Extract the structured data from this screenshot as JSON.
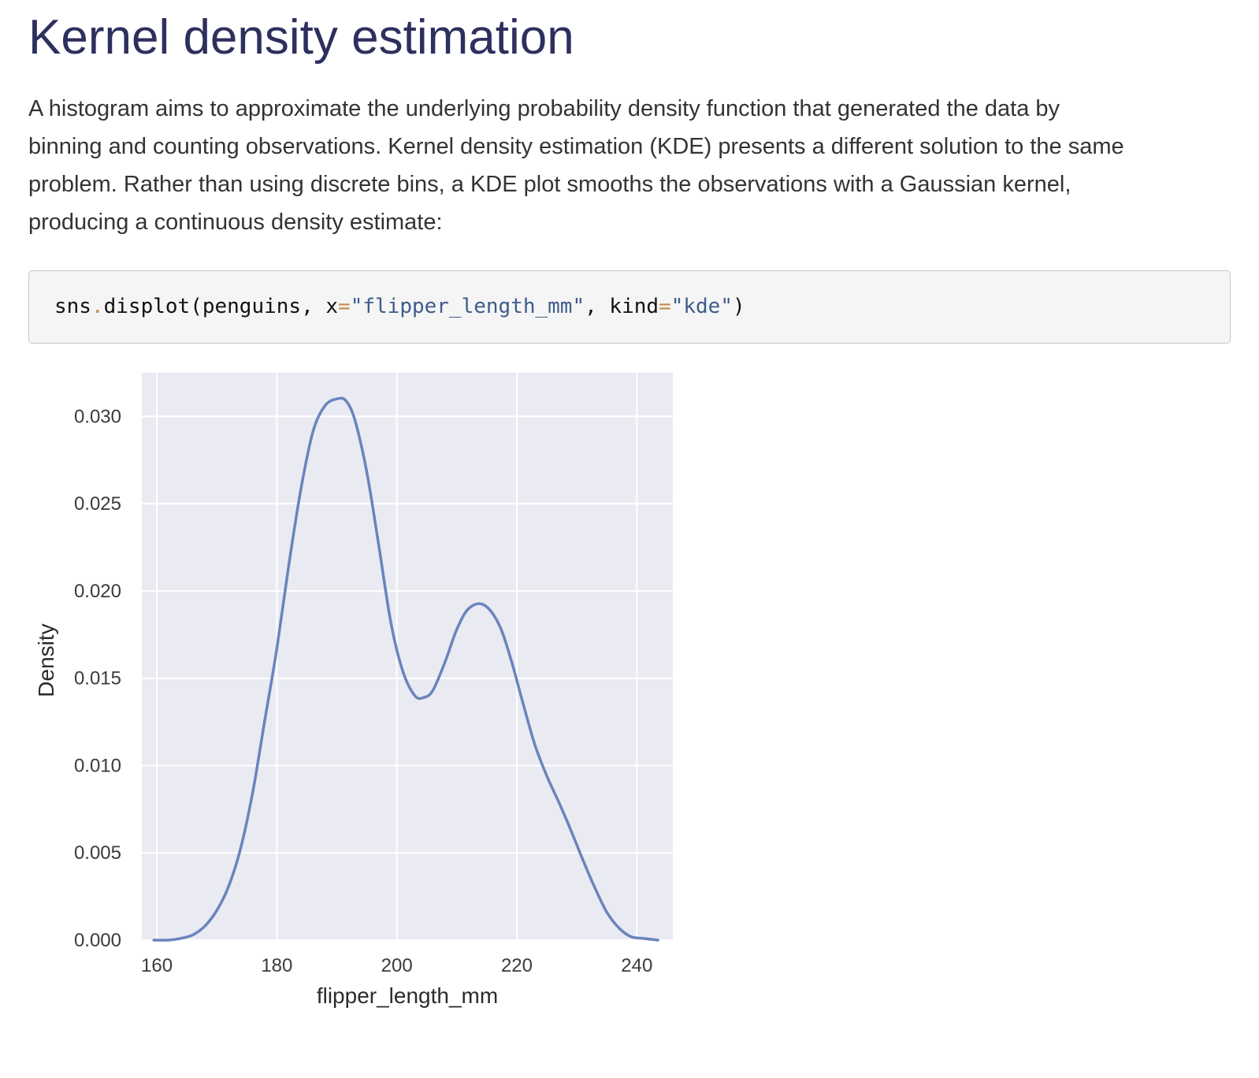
{
  "heading": "Kernel density estimation",
  "paragraph": {
    "lines": [
      "A histogram aims to approximate the underlying probability density function that generated the data by",
      "binning and counting observations. Kernel density estimation (KDE) presents a different solution to the same",
      "problem. Rather than using discrete bins, a KDE plot smooths the observations with a Gaussian kernel,",
      "producing a continuous density estimate:"
    ]
  },
  "code": {
    "tokens": [
      {
        "text": "sns",
        "kind": "plain"
      },
      {
        "text": ".",
        "kind": "op"
      },
      {
        "text": "displot(penguins, x",
        "kind": "plain"
      },
      {
        "text": "=",
        "kind": "op"
      },
      {
        "text": "\"flipper_length_mm\"",
        "kind": "str"
      },
      {
        "text": ", kind",
        "kind": "plain"
      },
      {
        "text": "=",
        "kind": "op"
      },
      {
        "text": "\"kde\"",
        "kind": "str"
      },
      {
        "text": ")",
        "kind": "plain"
      }
    ]
  },
  "colors": {
    "heading": "#2d2f5e",
    "plot_background": "#eaeaf2",
    "grid": "#ffffff",
    "line": "#6a84bc",
    "code_operator": "#c08a4e",
    "code_string": "#3e5c8c"
  },
  "chart_data": {
    "type": "line",
    "title": "",
    "xlabel": "flipper_length_mm",
    "ylabel": "Density",
    "xlim": [
      157.5,
      246
    ],
    "ylim": [
      0,
      0.0325
    ],
    "xticks": [
      "160",
      "180",
      "200",
      "220",
      "240"
    ],
    "yticks": [
      "0.000",
      "0.005",
      "0.010",
      "0.015",
      "0.020",
      "0.025",
      "0.030"
    ],
    "grid": true,
    "series": [
      {
        "x": [
          159.5,
          162,
          164,
          166,
          168,
          170,
          172,
          174,
          176,
          178,
          180,
          182,
          184,
          186,
          188,
          190,
          191.5,
          193,
          195,
          197,
          199,
          201,
          203,
          204.5,
          206,
          208,
          210,
          212,
          214.5,
          217,
          219,
          221,
          223,
          225,
          227,
          229,
          231,
          233,
          235,
          237,
          239,
          241,
          243.5
        ],
        "y": [
          0.0,
          0.0,
          0.0001,
          0.0003,
          0.0008,
          0.0017,
          0.0031,
          0.0053,
          0.0085,
          0.0126,
          0.0167,
          0.0215,
          0.0258,
          0.0291,
          0.0306,
          0.031,
          0.0309,
          0.0298,
          0.0268,
          0.0226,
          0.0182,
          0.0154,
          0.014,
          0.0139,
          0.0143,
          0.0159,
          0.0178,
          0.019,
          0.0192,
          0.0181,
          0.0161,
          0.0136,
          0.0112,
          0.0094,
          0.0079,
          0.0063,
          0.0046,
          0.003,
          0.0016,
          0.0007,
          0.0002,
          0.0001,
          0.0
        ]
      }
    ]
  }
}
